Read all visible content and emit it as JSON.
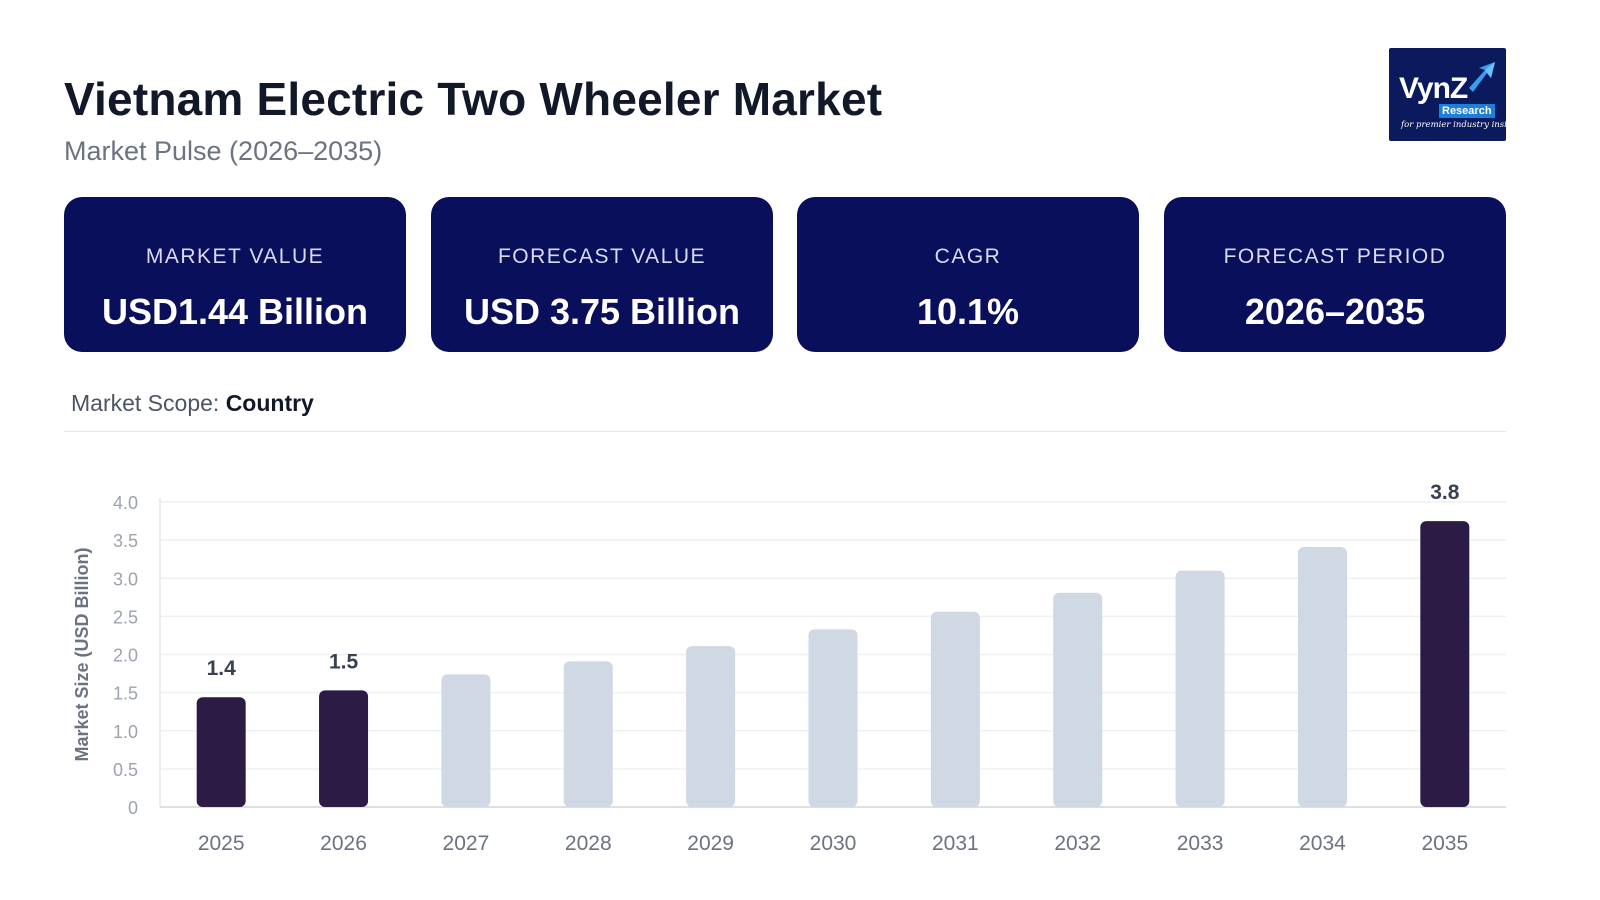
{
  "header": {
    "title": "Vietnam Electric Two Wheeler Market",
    "subtitle": "Market Pulse (2026–2035)"
  },
  "logo": {
    "name": "VynZ",
    "sub": "Research",
    "tagline": "for premier industry insights",
    "bg_color": "#0b1a5c"
  },
  "kpis": [
    {
      "label": "MARKET VALUE",
      "value": "USD1.44 Billion"
    },
    {
      "label": "FORECAST VALUE",
      "value": "USD 3.75 Billion"
    },
    {
      "label": "CAGR",
      "value": "10.1%"
    },
    {
      "label": "FORECAST PERIOD",
      "value": "2026–2035"
    }
  ],
  "scope": {
    "label": "Market Scope:",
    "value": "Country"
  },
  "colors": {
    "kpi_bg": "#0a0f5c",
    "bar_highlight": "#2b1b45",
    "bar_default": "#cfd8e3"
  },
  "chart_data": {
    "type": "bar",
    "categories": [
      "2025",
      "2026",
      "2027",
      "2028",
      "2029",
      "2030",
      "2031",
      "2032",
      "2033",
      "2034",
      "2035"
    ],
    "values": [
      1.44,
      1.53,
      1.74,
      1.91,
      2.11,
      2.33,
      2.56,
      2.81,
      3.1,
      3.41,
      3.75
    ],
    "highlighted": [
      "2025",
      "2026",
      "2035"
    ],
    "data_labels": {
      "2025": "1.4",
      "2026": "1.5",
      "2035": "3.8"
    },
    "yticks": [
      "0",
      "0.5",
      "1.0",
      "1.5",
      "2.0",
      "2.5",
      "3.0",
      "3.5",
      "4.0"
    ],
    "ylabel": "Market Size (USD Billion)",
    "xlabel": "",
    "ylim": [
      0,
      4.0
    ],
    "grid": true
  }
}
